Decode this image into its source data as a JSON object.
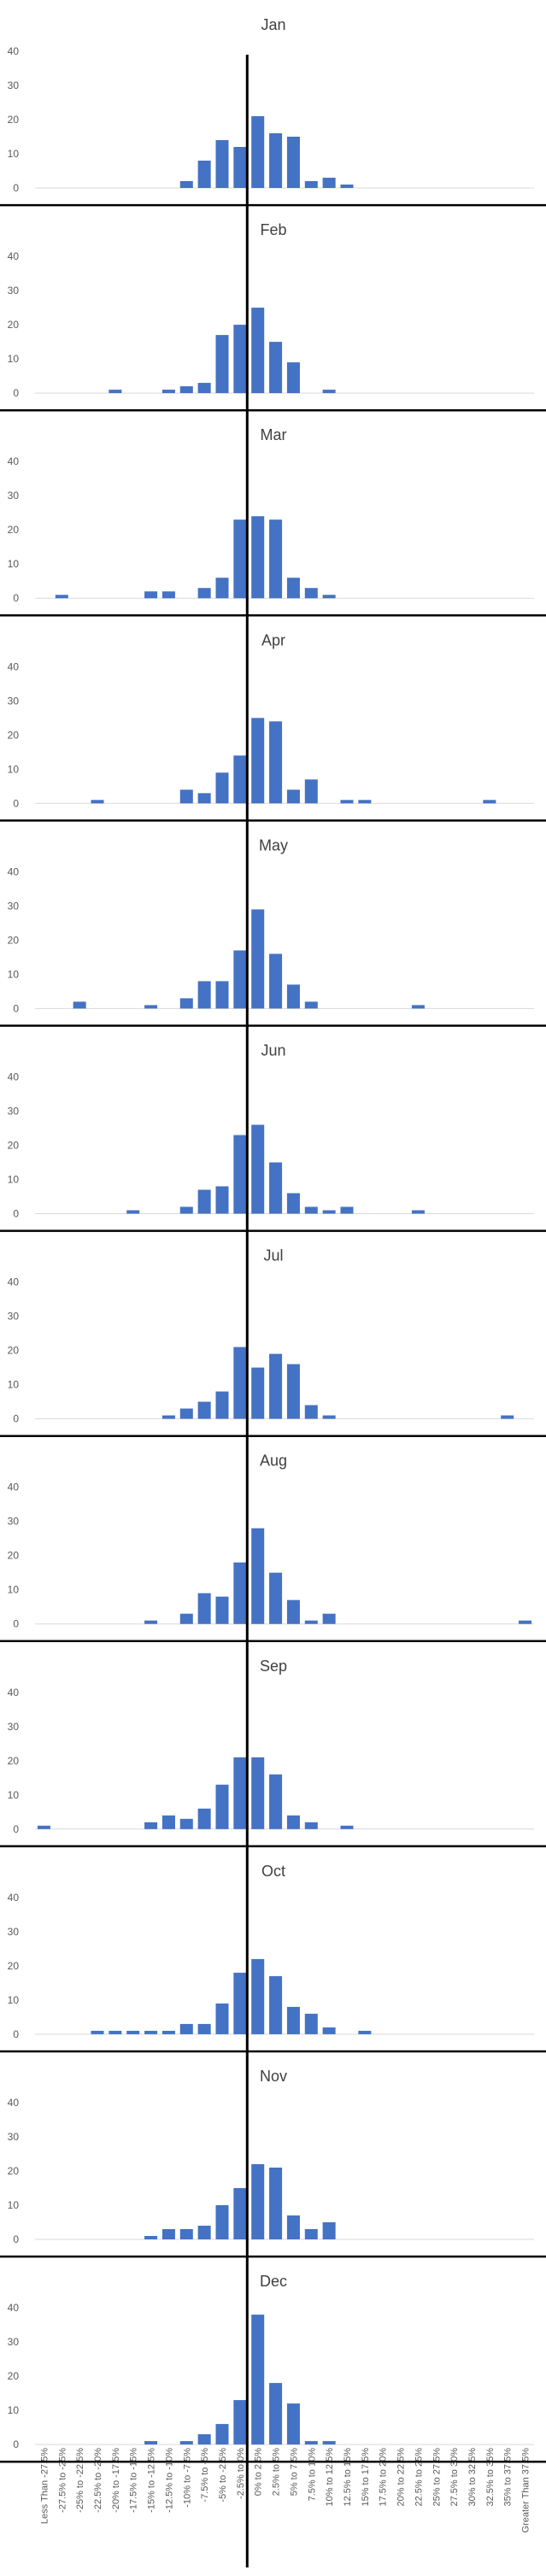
{
  "chart_data": {
    "type": "bar",
    "bar_color": "#4472c4",
    "center_line_color": "#000000",
    "ylim": [
      0,
      40
    ],
    "yticks": [
      0,
      10,
      20,
      30,
      40
    ],
    "grid": false,
    "categories": [
      "Less Than -27.5%",
      "-27.5% to -25%",
      "-25% to -22.5%",
      "-22.5% to -20%",
      "-20% to -17.5%",
      "-17.5% to -15%",
      "-15% to -12.5%",
      "-12.5% to -10%",
      "-10% to -7.5%",
      "-7.5% to -5%",
      "-5% to -2.5%",
      "-2.5% to 0%",
      "0% to 2.5%",
      "2.5% to 5%",
      "5% to 7.5%",
      "7.5% to 10%",
      "10% to 12.5%",
      "12.5% to 15%",
      "15% to 17.5%",
      "17.5% to 20%",
      "20% to 22.5%",
      "22.5% to 25%",
      "25% to 27.5%",
      "27.5% to 30%",
      "30% to 32.5%",
      "32.5% to 35%",
      "35% to 37.5%",
      "Greater Than 37.5%"
    ],
    "panels": [
      {
        "title": "Jan",
        "values": [
          0,
          0,
          0,
          0,
          0,
          0,
          0,
          0,
          2,
          8,
          14,
          12,
          21,
          16,
          15,
          2,
          3,
          1,
          0,
          0,
          0,
          0,
          0,
          0,
          0,
          0,
          0,
          0
        ]
      },
      {
        "title": "Feb",
        "values": [
          0,
          0,
          0,
          0,
          1,
          0,
          0,
          1,
          2,
          3,
          17,
          20,
          25,
          15,
          9,
          0,
          1,
          0,
          0,
          0,
          0,
          0,
          0,
          0,
          0,
          0,
          0,
          0
        ]
      },
      {
        "title": "Mar",
        "values": [
          0,
          1,
          0,
          0,
          0,
          0,
          2,
          2,
          0,
          3,
          6,
          23,
          24,
          23,
          6,
          3,
          1,
          0,
          0,
          0,
          0,
          0,
          0,
          0,
          0,
          0,
          0,
          0
        ]
      },
      {
        "title": "Apr",
        "values": [
          0,
          0,
          0,
          1,
          0,
          0,
          0,
          0,
          4,
          3,
          9,
          14,
          25,
          24,
          4,
          7,
          0,
          1,
          1,
          0,
          0,
          0,
          0,
          0,
          0,
          1,
          0,
          0
        ]
      },
      {
        "title": "May",
        "values": [
          0,
          0,
          2,
          0,
          0,
          0,
          1,
          0,
          3,
          8,
          8,
          17,
          29,
          16,
          7,
          2,
          0,
          0,
          0,
          0,
          0,
          1,
          0,
          0,
          0,
          0,
          0,
          0
        ]
      },
      {
        "title": "Jun",
        "values": [
          0,
          0,
          0,
          0,
          0,
          1,
          0,
          0,
          2,
          7,
          8,
          23,
          26,
          15,
          6,
          2,
          1,
          2,
          0,
          0,
          0,
          1,
          0,
          0,
          0,
          0,
          0,
          0
        ]
      },
      {
        "title": "Jul",
        "values": [
          0,
          0,
          0,
          0,
          0,
          0,
          0,
          1,
          3,
          5,
          8,
          21,
          15,
          19,
          16,
          4,
          1,
          0,
          0,
          0,
          0,
          0,
          0,
          0,
          0,
          0,
          1,
          0
        ]
      },
      {
        "title": "Aug",
        "values": [
          0,
          0,
          0,
          0,
          0,
          0,
          1,
          0,
          3,
          9,
          8,
          18,
          28,
          15,
          7,
          1,
          3,
          0,
          0,
          0,
          0,
          0,
          0,
          0,
          0,
          0,
          0,
          1
        ]
      },
      {
        "title": "Sep",
        "values": [
          1,
          0,
          0,
          0,
          0,
          0,
          2,
          4,
          3,
          6,
          13,
          21,
          21,
          16,
          4,
          2,
          0,
          1,
          0,
          0,
          0,
          0,
          0,
          0,
          0,
          0,
          0,
          0
        ]
      },
      {
        "title": "Oct",
        "values": [
          0,
          0,
          0,
          1,
          1,
          1,
          1,
          1,
          3,
          3,
          9,
          18,
          22,
          17,
          8,
          6,
          2,
          0,
          1,
          0,
          0,
          0,
          0,
          0,
          0,
          0,
          0,
          0
        ]
      },
      {
        "title": "Nov",
        "values": [
          0,
          0,
          0,
          0,
          0,
          0,
          1,
          3,
          3,
          4,
          10,
          15,
          22,
          21,
          7,
          3,
          5,
          0,
          0,
          0,
          0,
          0,
          0,
          0,
          0,
          0,
          0,
          0
        ]
      },
      {
        "title": "Dec",
        "values": [
          0,
          0,
          0,
          0,
          0,
          0,
          1,
          0,
          1,
          3,
          6,
          13,
          38,
          18,
          12,
          1,
          1,
          0,
          0,
          0,
          0,
          0,
          0,
          0,
          0,
          0,
          0,
          0
        ]
      }
    ]
  }
}
